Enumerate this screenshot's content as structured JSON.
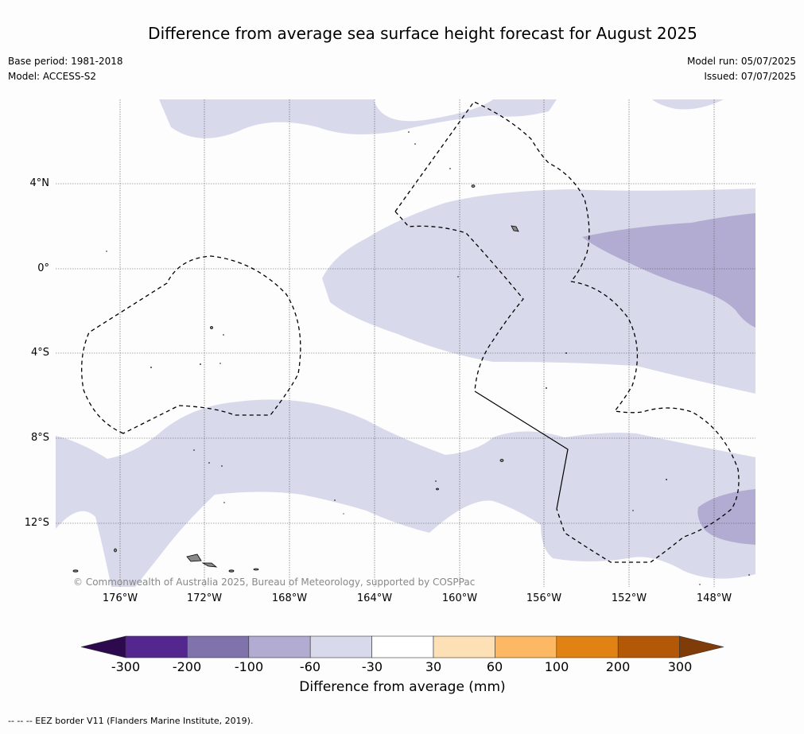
{
  "title": "Difference from average sea surface height forecast for August 2025",
  "meta_left": {
    "base_period": "Base period: 1981-2018",
    "model": "Model: ACCESS-S2"
  },
  "meta_right": {
    "model_run": "Model run: 05/07/2025",
    "issued": "Issued: 07/07/2025"
  },
  "lat_labels": [
    "4°N",
    "0°",
    "4°S",
    "8°S",
    "12°S"
  ],
  "lon_labels": [
    "176°W",
    "172°W",
    "168°W",
    "164°W",
    "160°W",
    "156°W",
    "152°W",
    "148°W"
  ],
  "copyright": "© Commonwealth of Australia 2025, Bureau of Meteorology, supported by COSPPac",
  "colorbar": {
    "ticks": [
      "-300",
      "-200",
      "-100",
      "-60",
      "-30",
      "30",
      "60",
      "100",
      "200",
      "300"
    ],
    "colors": [
      "#2d0a4e",
      "#54278f",
      "#8073ac",
      "#b2abd2",
      "#d8daeb",
      "#ffffff",
      "#fee0b6",
      "#fdb863",
      "#e08214",
      "#b35806",
      "#7f3b08"
    ],
    "title": "Difference from average (mm)"
  },
  "footnote": "--  --  -- EEZ border V11 (Flanders Marine Institute, 2019)."
}
